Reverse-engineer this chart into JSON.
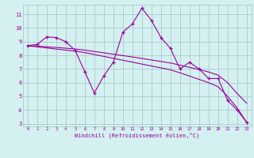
{
  "x": [
    0,
    1,
    2,
    3,
    4,
    5,
    6,
    7,
    8,
    9,
    10,
    11,
    12,
    13,
    14,
    15,
    16,
    17,
    18,
    19,
    20,
    21,
    22,
    23
  ],
  "line1": [
    8.7,
    8.8,
    9.35,
    9.3,
    9.0,
    8.35,
    6.8,
    5.25,
    6.5,
    7.5,
    9.7,
    10.3,
    11.45,
    10.55,
    9.3,
    8.5,
    7.0,
    7.5,
    7.0,
    6.3,
    6.3,
    4.7,
    4.0,
    3.1
  ],
  "trend1": [
    8.7,
    8.68,
    8.62,
    8.58,
    8.52,
    8.46,
    8.38,
    8.28,
    8.18,
    8.08,
    7.98,
    7.88,
    7.77,
    7.66,
    7.55,
    7.44,
    7.28,
    7.12,
    6.96,
    6.78,
    6.55,
    6.0,
    5.2,
    4.5
  ],
  "trend2": [
    8.7,
    8.62,
    8.54,
    8.46,
    8.38,
    8.3,
    8.2,
    8.06,
    7.92,
    7.78,
    7.64,
    7.5,
    7.36,
    7.22,
    7.08,
    6.94,
    6.72,
    6.48,
    6.24,
    6.0,
    5.7,
    5.0,
    4.15,
    3.1
  ],
  "line_color": "#990099",
  "bg_color": "#d4f0f0",
  "grid_color": "#aacccc",
  "xlabel": "Windchill (Refroidissement éolien,°C)",
  "ylim_min": 2.8,
  "ylim_max": 11.7,
  "xlim_min": -0.5,
  "xlim_max": 23.5,
  "yticks": [
    3,
    4,
    5,
    6,
    7,
    8,
    9,
    10,
    11
  ],
  "xticks": [
    0,
    1,
    2,
    3,
    4,
    5,
    6,
    7,
    8,
    9,
    10,
    11,
    12,
    13,
    14,
    15,
    16,
    17,
    18,
    19,
    20,
    21,
    22,
    23
  ]
}
